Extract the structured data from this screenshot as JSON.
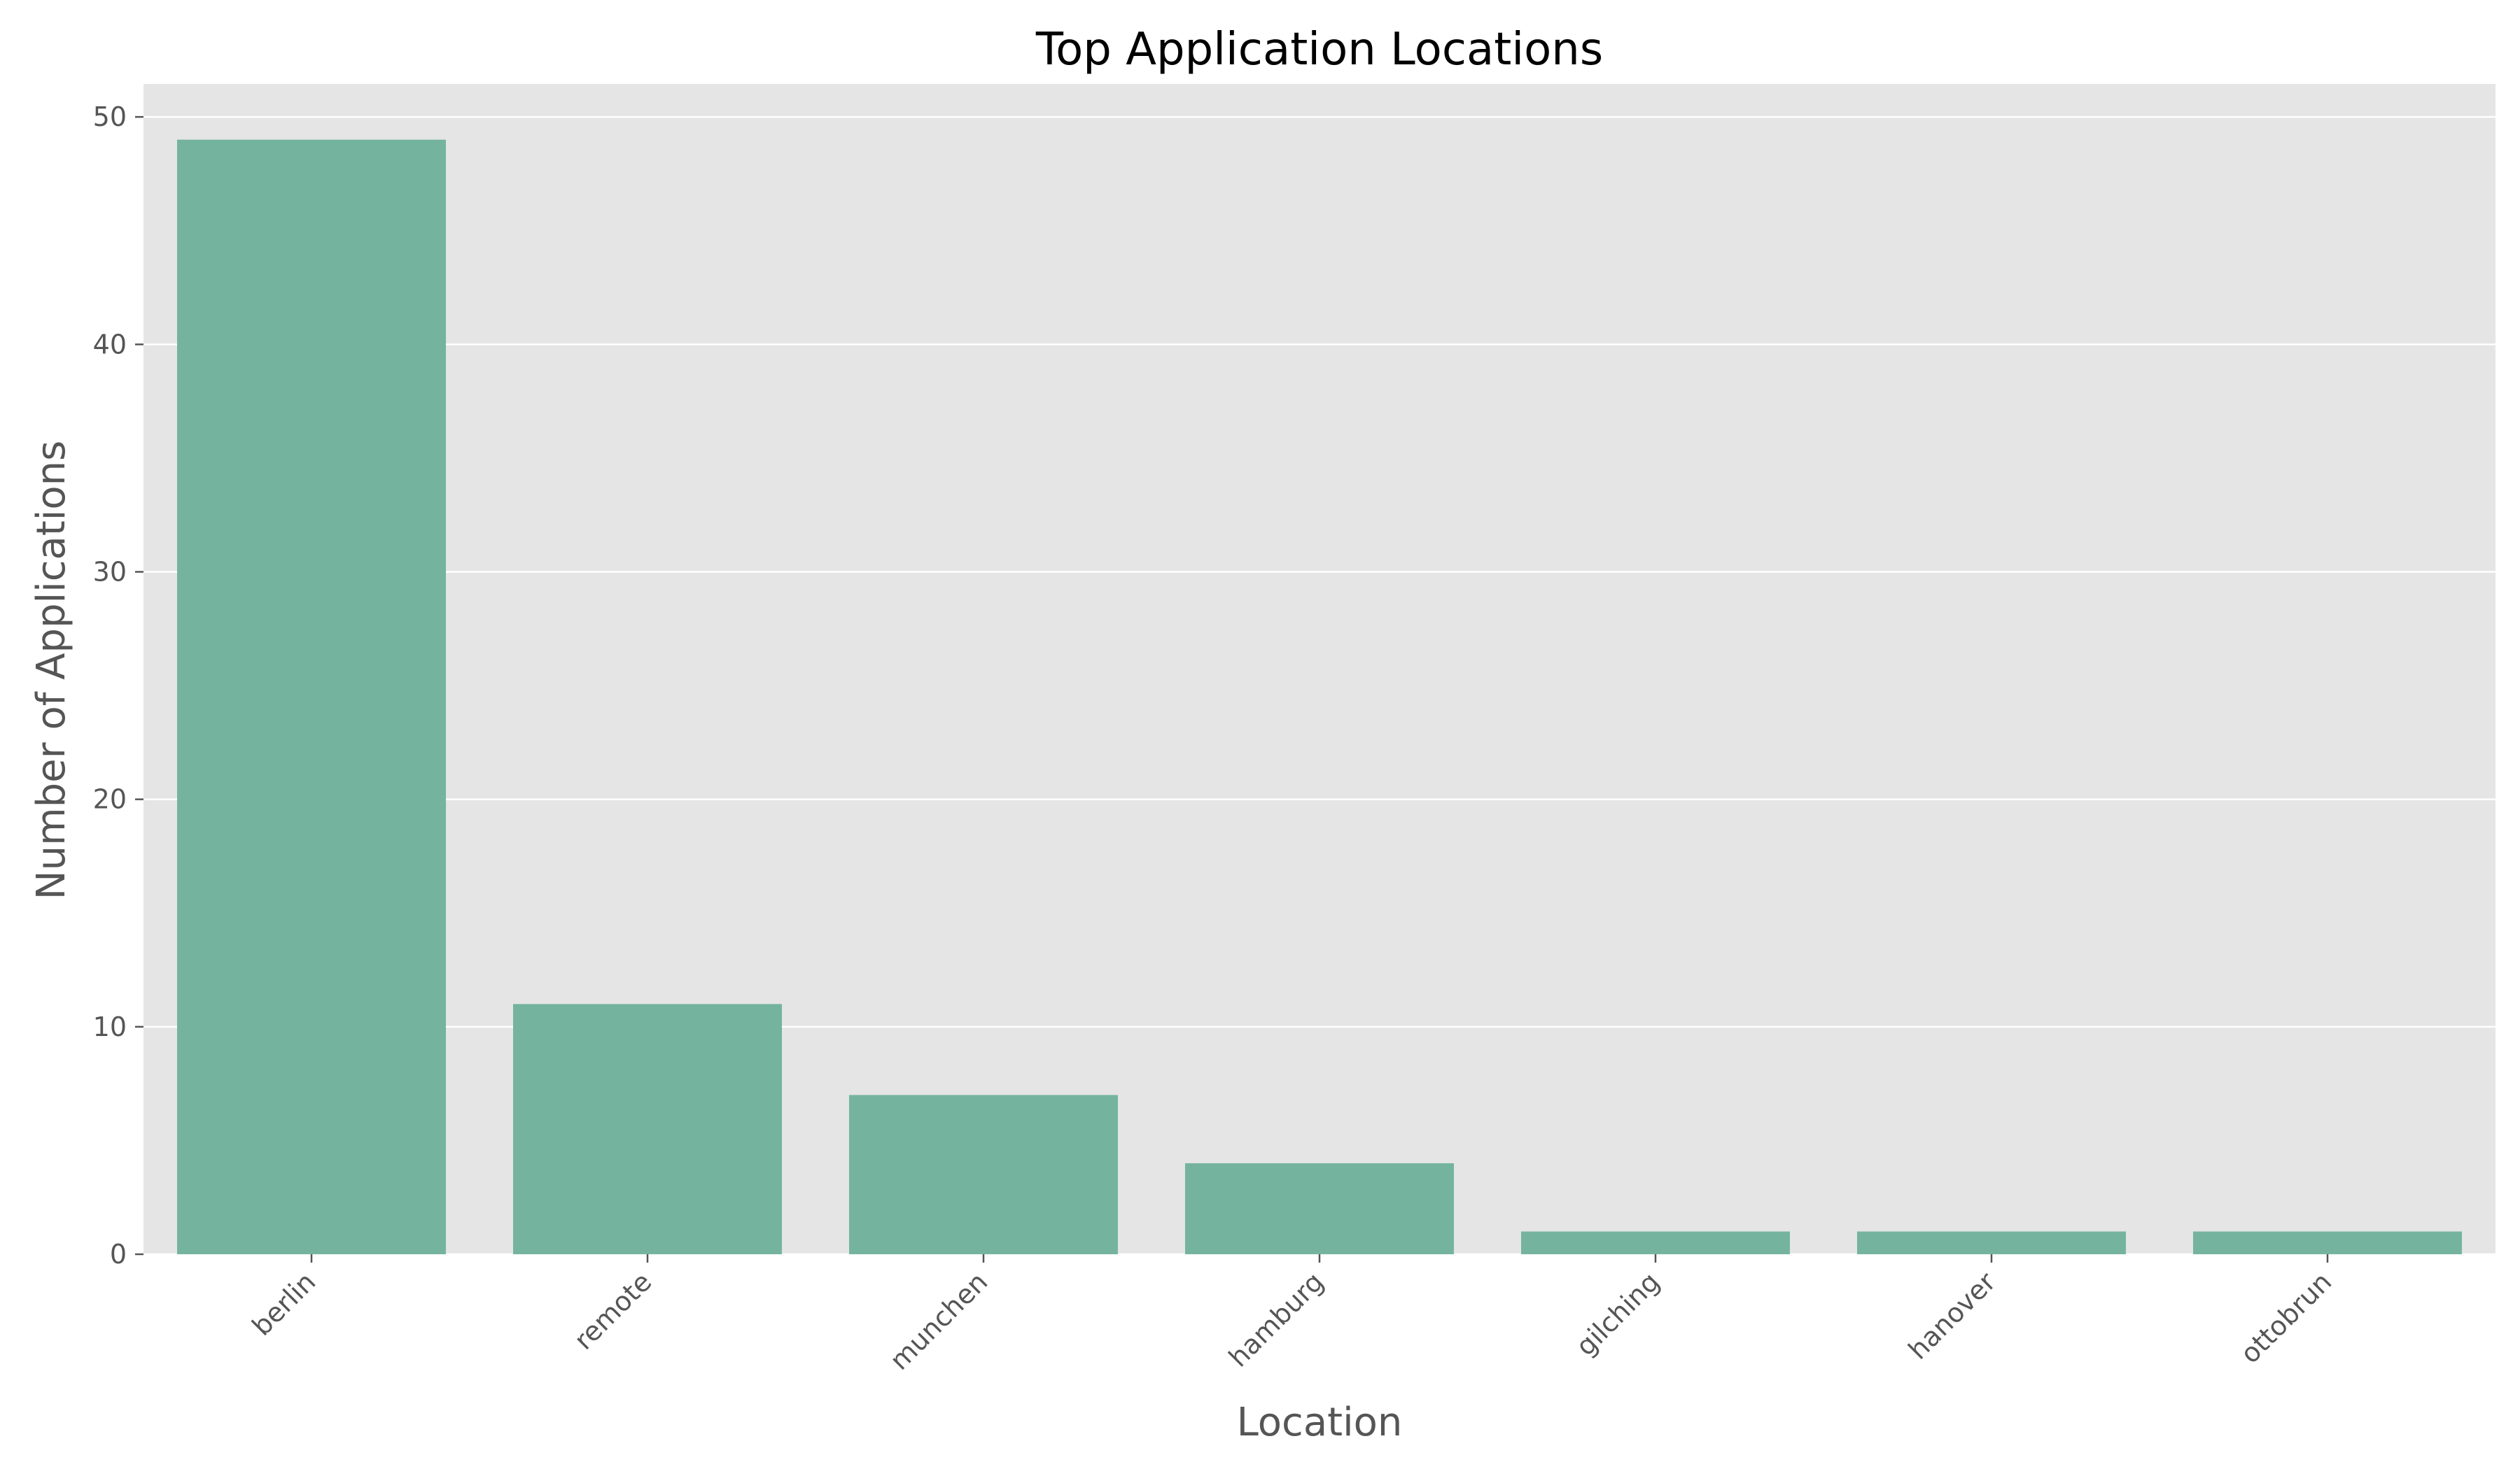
{
  "chart_data": {
    "type": "bar",
    "title": "Top Application Locations",
    "xlabel": "Location",
    "ylabel": "Number of Applications",
    "categories": [
      "berlin",
      "remote",
      "munchen",
      "hamburg",
      "gilching",
      "hanover",
      "ottobrun"
    ],
    "values": [
      49,
      11,
      7,
      4,
      1,
      1,
      1
    ],
    "ylim": [
      0,
      51.45
    ],
    "yticks": [
      0,
      10,
      20,
      30,
      40,
      50
    ],
    "grid": true,
    "legend": "none",
    "colors": {
      "bar": "#74b49f",
      "plot_background": "#e5e5e5",
      "grid": "#ffffff",
      "tick_mark": "#555555"
    }
  }
}
